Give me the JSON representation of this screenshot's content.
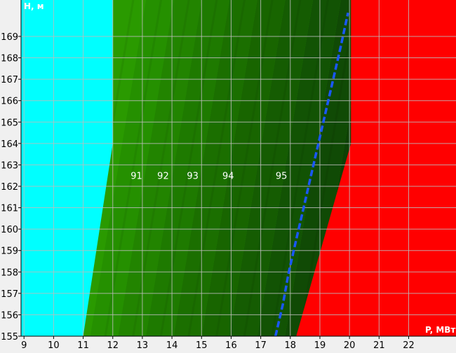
{
  "chart_data": {
    "type": "heatmap",
    "title": "",
    "xlabel": "P, МВт",
    "ylabel": "H, м",
    "xlim": [
      8.9,
      23.6
    ],
    "ylim": [
      155,
      170.7
    ],
    "x_ticks": [
      9,
      10,
      11,
      12,
      13,
      14,
      15,
      16,
      17,
      18,
      19,
      20,
      21,
      22
    ],
    "y_ticks": [
      155,
      156,
      157,
      158,
      159,
      160,
      161,
      162,
      163,
      164,
      165,
      166,
      167,
      168,
      169
    ],
    "x_tick_labels": [
      "9",
      "10",
      "11",
      "12",
      "13",
      "14",
      "15",
      "16",
      "17",
      "18",
      "19",
      "20",
      "21",
      "22"
    ],
    "y_tick_labels": [
      "155",
      "156",
      "157",
      "158",
      "159",
      "160",
      "161",
      "162",
      "163",
      "164",
      "165",
      "166",
      "167",
      "168",
      "169"
    ],
    "grid": true,
    "zones": {
      "low_limit": {
        "color": "#00ffff",
        "boundary": [
          [
            11.0,
            155
          ],
          [
            12.0,
            164
          ],
          [
            12.0,
            170.7
          ]
        ]
      },
      "high_limit": {
        "color": "#ff0000",
        "boundary": [
          [
            18.2,
            155
          ],
          [
            20.05,
            164
          ],
          [
            20.05,
            170.7
          ]
        ]
      }
    },
    "efficiency_bands": [
      {
        "label": "91",
        "x_at_162_5": 12.8,
        "color": "#228c00"
      },
      {
        "label": "92",
        "x_at_162_5": 13.7,
        "color": "#1d7c00"
      },
      {
        "label": "93",
        "x_at_162_5": 14.7,
        "color": "#196e00"
      },
      {
        "label": "94",
        "x_at_162_5": 15.9,
        "color": "#155f04"
      },
      {
        "label": "95",
        "x_at_162_5": 17.7,
        "color": "#0f4e04"
      }
    ],
    "band_colors_left_to_right": [
      "#2a9a00",
      "#259000",
      "#228400",
      "#1e7a00",
      "#1b6f00",
      "#186500",
      "#155c02",
      "#125304",
      "#104a05",
      "#0d4105"
    ],
    "band_label_y": 162.5,
    "optimal_line": {
      "color": "#1a57ff",
      "points": [
        [
          17.5,
          155
        ],
        [
          17.75,
          156.5
        ],
        [
          17.95,
          158
        ],
        [
          18.2,
          159.5
        ],
        [
          18.45,
          161
        ],
        [
          18.7,
          162.5
        ],
        [
          18.95,
          164
        ],
        [
          19.2,
          165.5
        ],
        [
          19.45,
          167
        ],
        [
          19.7,
          168.5
        ],
        [
          19.95,
          170.1
        ]
      ]
    }
  }
}
